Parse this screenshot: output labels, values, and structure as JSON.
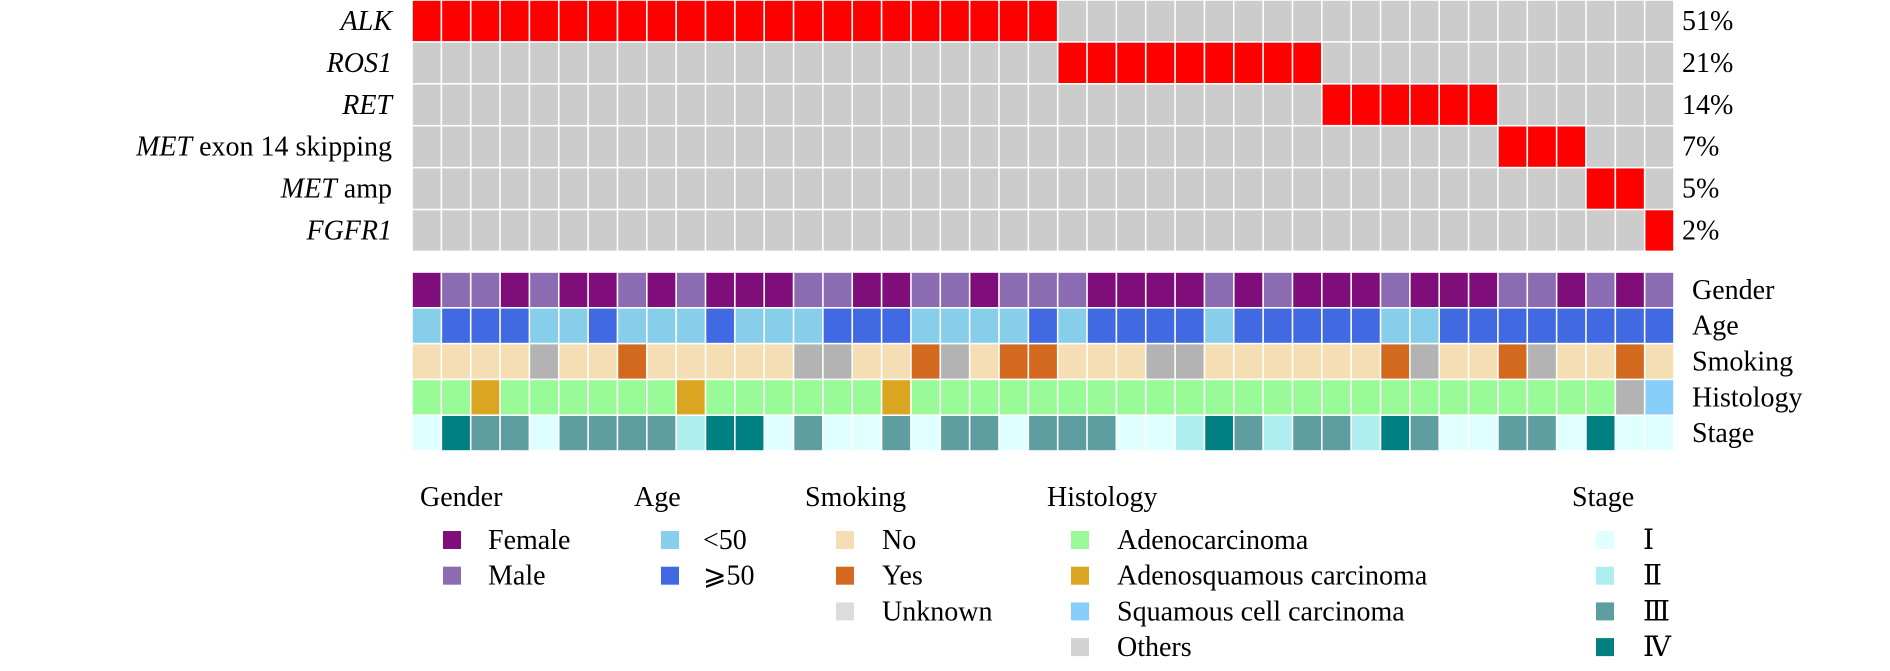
{
  "chart_data": {
    "type": "heatmap",
    "subtype": "oncoprint",
    "n_samples": 43,
    "alteration_colors": {
      "altered": "#FF0000",
      "not_altered": "#CCCCCC"
    },
    "genes": [
      {
        "name_italic": "ALK",
        "suffix": "",
        "percent_label": "51%",
        "altered": [
          1,
          1,
          1,
          1,
          1,
          1,
          1,
          1,
          1,
          1,
          1,
          1,
          1,
          1,
          1,
          1,
          1,
          1,
          1,
          1,
          1,
          1,
          0,
          0,
          0,
          0,
          0,
          0,
          0,
          0,
          0,
          0,
          0,
          0,
          0,
          0,
          0,
          0,
          0,
          0,
          0,
          0,
          0
        ]
      },
      {
        "name_italic": "ROS1",
        "suffix": "",
        "percent_label": "21%",
        "altered": [
          0,
          0,
          0,
          0,
          0,
          0,
          0,
          0,
          0,
          0,
          0,
          0,
          0,
          0,
          0,
          0,
          0,
          0,
          0,
          0,
          0,
          0,
          1,
          1,
          1,
          1,
          1,
          1,
          1,
          1,
          1,
          0,
          0,
          0,
          0,
          0,
          0,
          0,
          0,
          0,
          0,
          0,
          0
        ]
      },
      {
        "name_italic": "RET",
        "suffix": "",
        "percent_label": "14%",
        "altered": [
          0,
          0,
          0,
          0,
          0,
          0,
          0,
          0,
          0,
          0,
          0,
          0,
          0,
          0,
          0,
          0,
          0,
          0,
          0,
          0,
          0,
          0,
          0,
          0,
          0,
          0,
          0,
          0,
          0,
          0,
          0,
          1,
          1,
          1,
          1,
          1,
          1,
          0,
          0,
          0,
          0,
          0,
          0
        ]
      },
      {
        "name_italic": "MET",
        "suffix": " exon 14 skipping",
        "percent_label": "7%",
        "altered": [
          0,
          0,
          0,
          0,
          0,
          0,
          0,
          0,
          0,
          0,
          0,
          0,
          0,
          0,
          0,
          0,
          0,
          0,
          0,
          0,
          0,
          0,
          0,
          0,
          0,
          0,
          0,
          0,
          0,
          0,
          0,
          0,
          0,
          0,
          0,
          0,
          0,
          1,
          1,
          1,
          0,
          0,
          0
        ]
      },
      {
        "name_italic": "MET",
        "suffix": " amp",
        "percent_label": "5%",
        "altered": [
          0,
          0,
          0,
          0,
          0,
          0,
          0,
          0,
          0,
          0,
          0,
          0,
          0,
          0,
          0,
          0,
          0,
          0,
          0,
          0,
          0,
          0,
          0,
          0,
          0,
          0,
          0,
          0,
          0,
          0,
          0,
          0,
          0,
          0,
          0,
          0,
          0,
          0,
          0,
          0,
          1,
          1,
          0
        ]
      },
      {
        "name_italic": "FGFR1",
        "suffix": "",
        "percent_label": "2%",
        "altered": [
          0,
          0,
          0,
          0,
          0,
          0,
          0,
          0,
          0,
          0,
          0,
          0,
          0,
          0,
          0,
          0,
          0,
          0,
          0,
          0,
          0,
          0,
          0,
          0,
          0,
          0,
          0,
          0,
          0,
          0,
          0,
          0,
          0,
          0,
          0,
          0,
          0,
          0,
          0,
          0,
          0,
          0,
          1
        ]
      }
    ],
    "annotations": [
      {
        "name": "Gender",
        "values": [
          "Female",
          "Male",
          "Male",
          "Female",
          "Male",
          "Female",
          "Female",
          "Male",
          "Female",
          "Male",
          "Female",
          "Female",
          "Female",
          "Male",
          "Male",
          "Female",
          "Female",
          "Male",
          "Male",
          "Female",
          "Male",
          "Male",
          "Male",
          "Female",
          "Female",
          "Female",
          "Female",
          "Male",
          "Female",
          "Male",
          "Female",
          "Female",
          "Female",
          "Male",
          "Female",
          "Female",
          "Female",
          "Male",
          "Male",
          "Female",
          "Male",
          "Female",
          "Male"
        ]
      },
      {
        "name": "Age",
        "values": [
          "<50",
          "≥50",
          "≥50",
          "≥50",
          "<50",
          "<50",
          "≥50",
          "<50",
          "<50",
          "<50",
          "≥50",
          "<50",
          "<50",
          "<50",
          "≥50",
          "≥50",
          "≥50",
          "<50",
          "<50",
          "<50",
          "<50",
          "≥50",
          "<50",
          "≥50",
          "≥50",
          "≥50",
          "≥50",
          "<50",
          "≥50",
          "≥50",
          "≥50",
          "≥50",
          "≥50",
          "<50",
          "<50",
          "≥50",
          "≥50",
          "≥50",
          "≥50",
          "≥50",
          "≥50",
          "≥50",
          "≥50"
        ]
      },
      {
        "name": "Smoking",
        "values": [
          "No",
          "No",
          "No",
          "No",
          "Unknown",
          "No",
          "No",
          "Yes",
          "No",
          "No",
          "No",
          "No",
          "No",
          "Unknown",
          "Unknown",
          "No",
          "No",
          "Yes",
          "Unknown",
          "No",
          "Yes",
          "Yes",
          "No",
          "No",
          "No",
          "Unknown",
          "Unknown",
          "No",
          "No",
          "No",
          "No",
          "No",
          "No",
          "Yes",
          "Unknown",
          "No",
          "No",
          "Yes",
          "Unknown",
          "No",
          "No",
          "Yes",
          "No"
        ]
      },
      {
        "name": "Histology",
        "values": [
          "Adenocarcinoma",
          "Adenocarcinoma",
          "Adenosquamous carcinoma",
          "Adenocarcinoma",
          "Adenocarcinoma",
          "Adenocarcinoma",
          "Adenocarcinoma",
          "Adenocarcinoma",
          "Adenocarcinoma",
          "Adenosquamous carcinoma",
          "Adenocarcinoma",
          "Adenocarcinoma",
          "Adenocarcinoma",
          "Adenocarcinoma",
          "Adenocarcinoma",
          "Adenocarcinoma",
          "Adenosquamous carcinoma",
          "Adenocarcinoma",
          "Adenocarcinoma",
          "Adenocarcinoma",
          "Adenocarcinoma",
          "Adenocarcinoma",
          "Adenocarcinoma",
          "Adenocarcinoma",
          "Adenocarcinoma",
          "Adenocarcinoma",
          "Adenocarcinoma",
          "Adenocarcinoma",
          "Adenocarcinoma",
          "Adenocarcinoma",
          "Adenocarcinoma",
          "Adenocarcinoma",
          "Adenocarcinoma",
          "Adenocarcinoma",
          "Adenocarcinoma",
          "Adenocarcinoma",
          "Adenocarcinoma",
          "Adenocarcinoma",
          "Adenocarcinoma",
          "Adenocarcinoma",
          "Adenocarcinoma",
          "Others",
          "Squamous cell carcinoma"
        ]
      },
      {
        "name": "Stage",
        "values": [
          "I",
          "IV",
          "III",
          "III",
          "I",
          "III",
          "III",
          "III",
          "III",
          "II",
          "IV",
          "IV",
          "I",
          "III",
          "I",
          "I",
          "III",
          "I",
          "III",
          "III",
          "I",
          "III",
          "III",
          "III",
          "I",
          "I",
          "II",
          "IV",
          "III",
          "II",
          "III",
          "III",
          "II",
          "IV",
          "III",
          "I",
          "I",
          "III",
          "III",
          "I",
          "IV",
          "I",
          "I"
        ]
      }
    ],
    "track_colors": {
      "Gender": {
        "Female": "#800E7A",
        "Male": "#8B6BB1"
      },
      "Age": {
        "<50": "#87CEEB",
        "≥50": "#4169E1"
      },
      "Smoking": {
        "No": "#F5DEB3",
        "Yes": "#D2691E",
        "Unknown": "#B3B3B3"
      },
      "Histology": {
        "Adenocarcinoma": "#98FB98",
        "Adenosquamous carcinoma": "#DAA520",
        "Squamous cell carcinoma": "#87CEFA",
        "Others": "#B3B3B3"
      },
      "Stage": {
        "I": "#E0FFFF",
        "II": "#AFEEEE",
        "III": "#5F9EA0",
        "IV": "#008080"
      }
    },
    "legends": [
      {
        "title": "Gender",
        "items": [
          {
            "label": "Female",
            "color": "#800E7A"
          },
          {
            "label": "Male",
            "color": "#8B6BB1"
          }
        ]
      },
      {
        "title": "Age",
        "items": [
          {
            "label": "<50",
            "color": "#87CEEB"
          },
          {
            "label": "⩾50",
            "color": "#4169E1"
          }
        ]
      },
      {
        "title": "Smoking",
        "items": [
          {
            "label": "No",
            "color": "#F5DEB3"
          },
          {
            "label": "Yes",
            "color": "#D2691E"
          },
          {
            "label": "Unknown",
            "color": "#DCDCDC"
          }
        ]
      },
      {
        "title": "Histology",
        "items": [
          {
            "label": "Adenocarcinoma",
            "color": "#98FB98"
          },
          {
            "label": "Adenosquamous carcinoma",
            "color": "#DAA520"
          },
          {
            "label": "Squamous cell carcinoma",
            "color": "#87CEFA"
          },
          {
            "label": "Others",
            "color": "#D3D3D3"
          }
        ]
      },
      {
        "title": "Stage",
        "items": [
          {
            "label": "Ⅰ",
            "color": "#E0FFFF"
          },
          {
            "label": "Ⅱ",
            "color": "#AFEEEE"
          },
          {
            "label": "Ⅲ",
            "color": "#5F9EA0"
          },
          {
            "label": "Ⅳ",
            "color": "#008080"
          }
        ]
      }
    ]
  }
}
